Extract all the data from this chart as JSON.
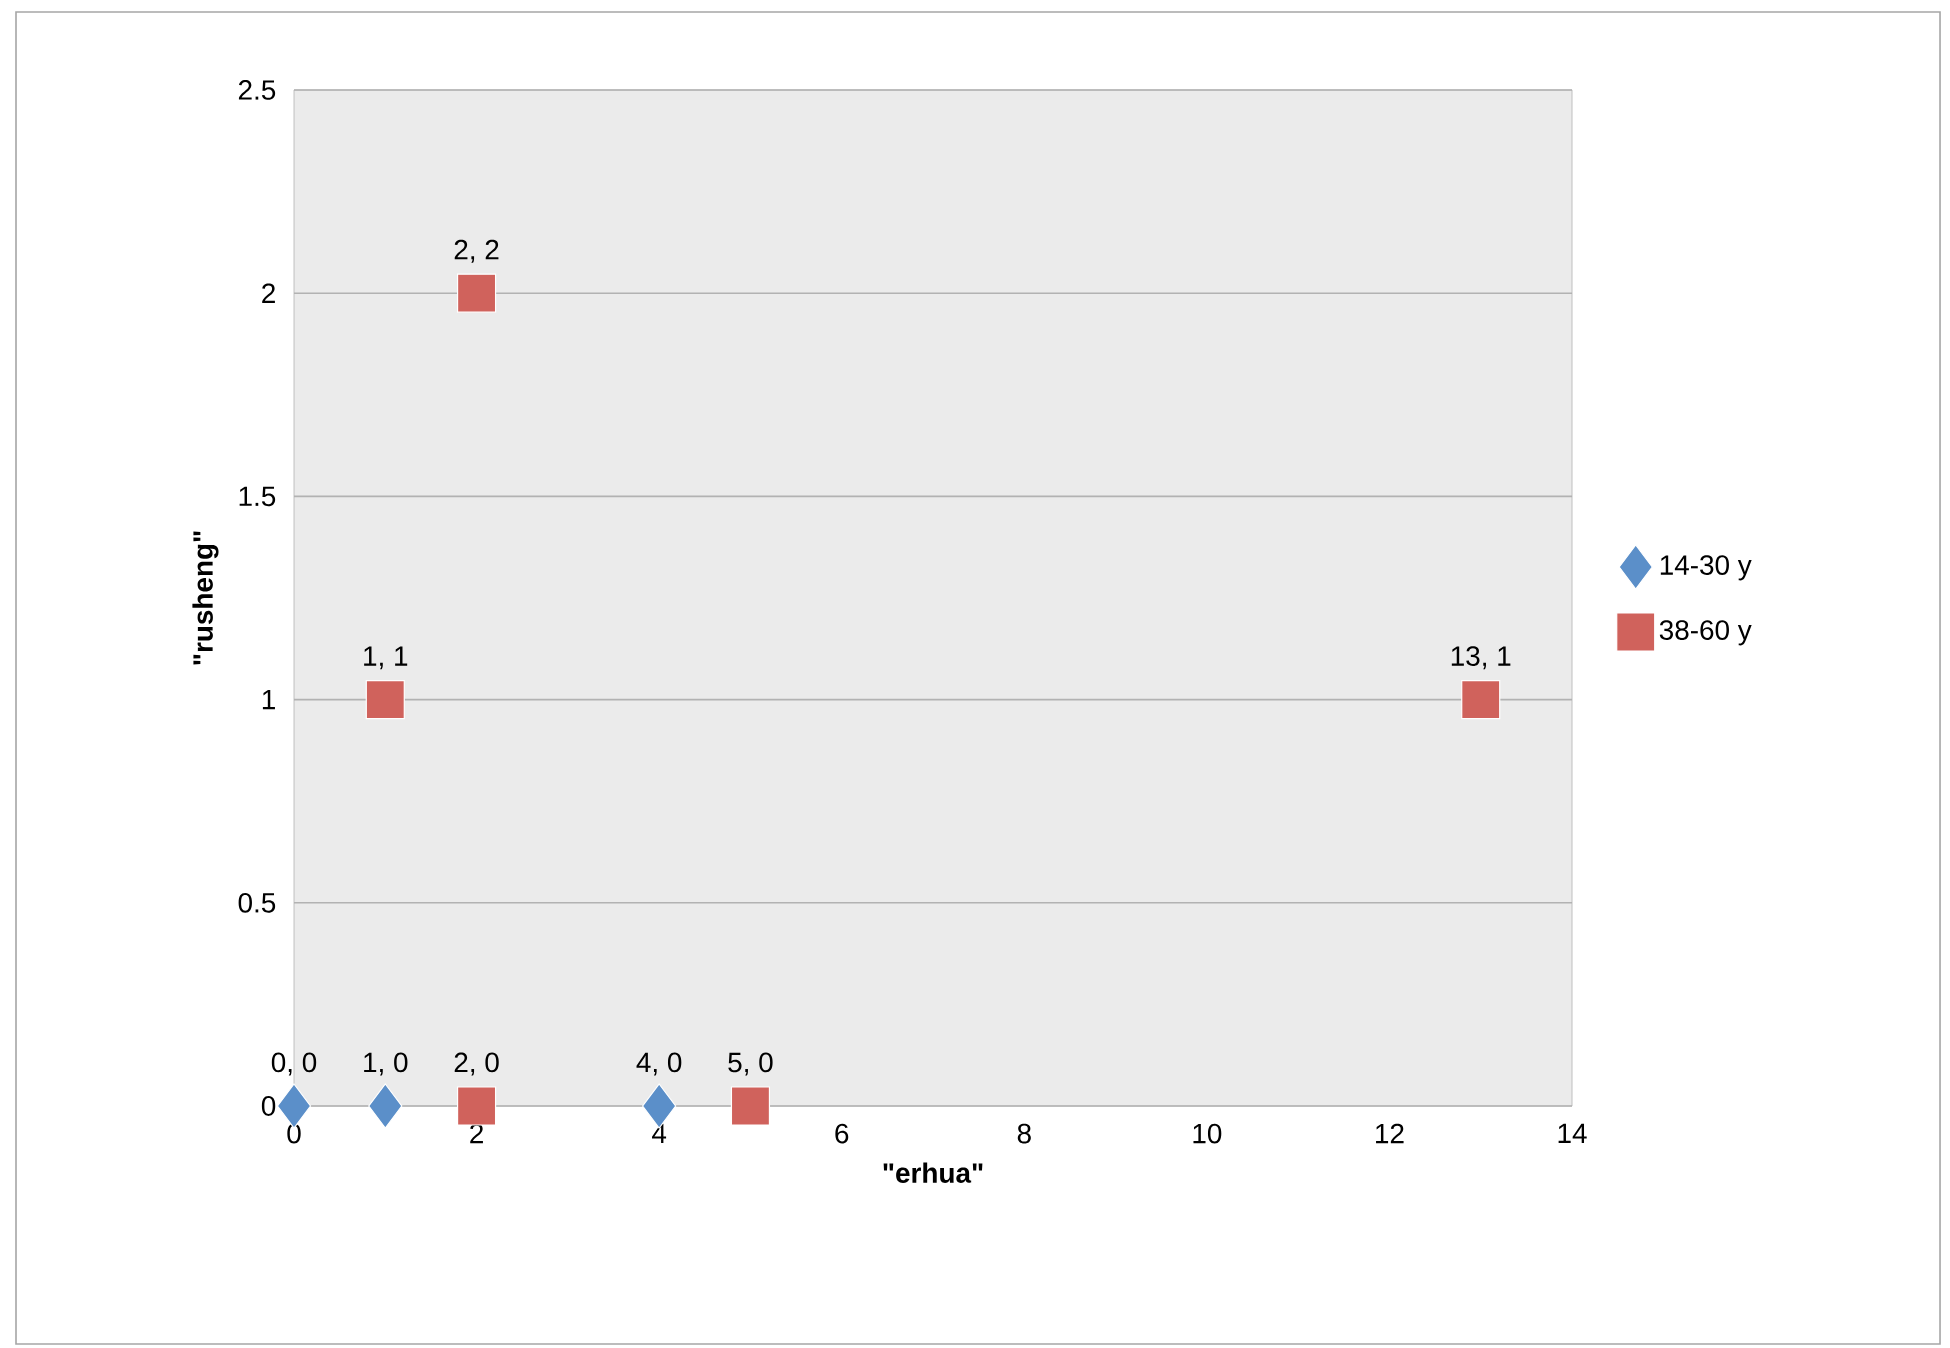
{
  "chart_data": {
    "type": "scatter",
    "xlabel": "\"erhua\"",
    "ylabel": "\"rusheng\"",
    "xlim": [
      0,
      14
    ],
    "ylim": [
      0,
      2.5
    ],
    "xticks": [
      0,
      2,
      4,
      6,
      8,
      10,
      12,
      14
    ],
    "yticks": [
      0,
      0.5,
      1,
      1.5,
      2,
      2.5
    ],
    "grid": "y",
    "legend": "right",
    "series": [
      {
        "name": "14-30 y",
        "color": "#5b8fc9",
        "marker": "diamond",
        "x": [
          0,
          1,
          4
        ],
        "values": [
          0,
          0,
          0
        ],
        "value_labels": [
          "0, 0",
          "1, 0",
          "4, 0"
        ]
      },
      {
        "name": "38-60 y",
        "color": "#d0625c",
        "marker": "square",
        "x": [
          1,
          2,
          2,
          5,
          13
        ],
        "values": [
          1,
          2,
          0,
          0,
          1
        ],
        "value_labels": [
          "1, 1",
          "2, 2",
          "2, 0",
          "5, 0",
          "13, 1"
        ]
      }
    ]
  }
}
